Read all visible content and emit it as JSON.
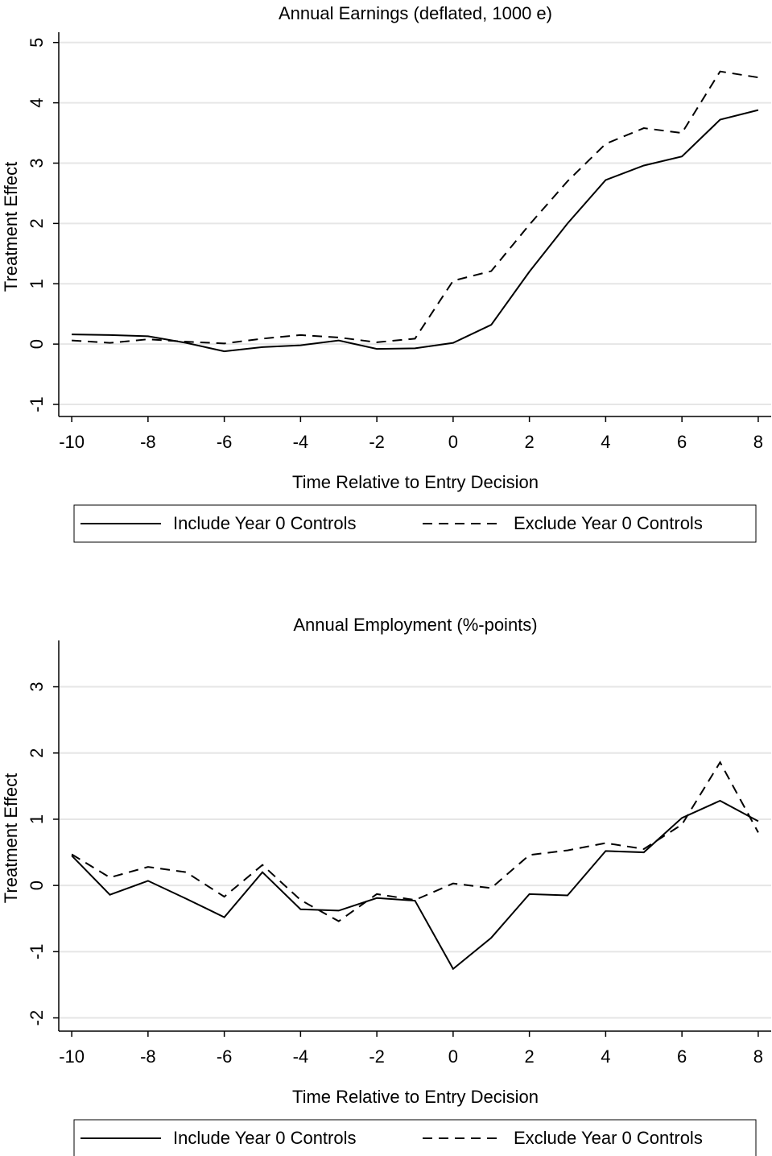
{
  "chart_data": [
    {
      "type": "line",
      "title": "Annual Earnings (deflated, 1000 e)",
      "x_label": "Time Relative to Entry Decision",
      "y_label": "Treatment Effect",
      "x": [
        -10,
        -9,
        -8,
        -7,
        -6,
        -5,
        -4,
        -3,
        -2,
        -1,
        0,
        1,
        2,
        3,
        4,
        5,
        6,
        7,
        8
      ],
      "xlim": [
        -10.34,
        8.34
      ],
      "xticks": [
        -10,
        -8,
        -6,
        -4,
        -2,
        0,
        2,
        4,
        6,
        8
      ],
      "ylim": [
        -1.2,
        5.17
      ],
      "yticks": [
        -1,
        0,
        1,
        2,
        3,
        4,
        5
      ],
      "grid": true,
      "legend": "bottom",
      "series": [
        {
          "name": "Include Year 0 Controls",
          "color": "#000000",
          "linestyle": "solid",
          "values": [
            0.16,
            0.15,
            0.13,
            0.02,
            -0.12,
            -0.05,
            -0.02,
            0.06,
            -0.08,
            -0.07,
            0.02,
            0.32,
            1.2,
            2.0,
            2.72,
            2.96,
            3.11,
            3.72,
            3.88
          ]
        },
        {
          "name": "Exclude Year 0 Controls",
          "color": "#000000",
          "linestyle": "dashed",
          "values": [
            0.06,
            0.02,
            0.08,
            0.04,
            0.01,
            0.09,
            0.15,
            0.11,
            0.03,
            0.09,
            1.05,
            1.21,
            1.98,
            2.7,
            3.32,
            3.58,
            3.5,
            4.52,
            4.42
          ]
        }
      ]
    },
    {
      "type": "line",
      "title": "Annual Employment (%-points)",
      "x_label": "Time Relative to Entry Decision",
      "y_label": "Treatment Effect",
      "x": [
        -10,
        -9,
        -8,
        -7,
        -6,
        -5,
        -4,
        -3,
        -2,
        -1,
        0,
        1,
        2,
        3,
        4,
        5,
        6,
        7,
        8
      ],
      "xlim": [
        -10.34,
        8.34
      ],
      "xticks": [
        -10,
        -8,
        -6,
        -4,
        -2,
        0,
        2,
        4,
        6,
        8
      ],
      "ylim": [
        -2.2,
        3.7
      ],
      "yticks": [
        -2,
        -1,
        0,
        1,
        2,
        3
      ],
      "grid": true,
      "legend": "bottom",
      "series": [
        {
          "name": "Include Year 0 Controls",
          "color": "#000000",
          "linestyle": "solid",
          "values": [
            0.45,
            -0.14,
            0.07,
            -0.2,
            -0.48,
            0.2,
            -0.36,
            -0.38,
            -0.19,
            -0.23,
            -1.26,
            -0.79,
            -0.13,
            -0.15,
            0.52,
            0.5,
            1.02,
            1.28,
            0.97
          ]
        },
        {
          "name": "Exclude Year 0 Controls",
          "color": "#000000",
          "linestyle": "dashed",
          "values": [
            0.47,
            0.12,
            0.28,
            0.2,
            -0.17,
            0.31,
            -0.22,
            -0.54,
            -0.13,
            -0.22,
            0.03,
            -0.04,
            0.46,
            0.53,
            0.64,
            0.55,
            0.92,
            1.86,
            0.8
          ]
        }
      ]
    }
  ]
}
